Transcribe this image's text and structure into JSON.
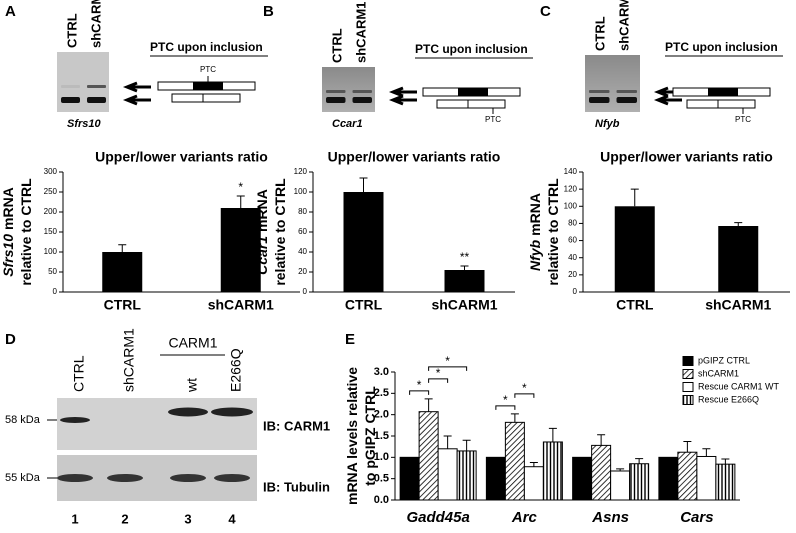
{
  "panel_letters": [
    "A",
    "B",
    "C",
    "D",
    "E"
  ],
  "gels": [
    {
      "lanes": [
        "CTRL",
        "shCARM1"
      ],
      "gene": "Sfrs10",
      "diagram_title": "PTC upon inclusion",
      "ptc": "PTC",
      "ptc_position": "above"
    },
    {
      "lanes": [
        "CTRL",
        "shCARM1"
      ],
      "gene": "Ccar1",
      "diagram_title": "PTC upon inclusion",
      "ptc": "PTC",
      "ptc_position": "below"
    },
    {
      "lanes": [
        "CTRL",
        "shCARM1"
      ],
      "gene": "Nfyb",
      "diagram_title": "PTC upon inclusion",
      "ptc": "PTC",
      "ptc_position": "below"
    }
  ],
  "blot": {
    "lanes": [
      "CTRL",
      "shCARM1",
      "wt",
      "E266Q"
    ],
    "group": "CARM1",
    "markers": [
      "58 kDa",
      "55 kDa"
    ],
    "antibodies": [
      "IB: CARM1",
      "IB: Tubulin"
    ],
    "lane_numbers": [
      "1",
      "2",
      "3",
      "4"
    ]
  },
  "chart_data": [
    {
      "type": "bar",
      "title": "Upper/lower variants ratio",
      "ylabel": [
        "Sfrs10",
        "mRNA",
        "relative to CTRL"
      ],
      "categories": [
        "CTRL",
        "shCARM1"
      ],
      "values": [
        100,
        210
      ],
      "errors": [
        18,
        30
      ],
      "color": "#000000",
      "ylim": [
        0,
        300
      ],
      "yticks": [
        0,
        50,
        100,
        150,
        200,
        250,
        300
      ],
      "annotations": [
        {
          "category": "shCARM1",
          "text": "*"
        }
      ]
    },
    {
      "type": "bar",
      "title": "Upper/lower variants ratio",
      "ylabel": [
        "Ccar1",
        "mRNA",
        "relative to CTRL"
      ],
      "categories": [
        "CTRL",
        "shCARM1"
      ],
      "values": [
        100,
        22
      ],
      "errors": [
        14,
        4
      ],
      "color": "#000000",
      "ylim": [
        0,
        120
      ],
      "yticks": [
        0,
        20,
        40,
        60,
        80,
        100,
        120
      ],
      "annotations": [
        {
          "category": "shCARM1",
          "text": "**"
        }
      ]
    },
    {
      "type": "bar",
      "title": "Upper/lower variants ratio",
      "ylabel": [
        "Nfyb",
        "mRNA",
        "relative to CTRL"
      ],
      "categories": [
        "CTRL",
        "shCARM1"
      ],
      "values": [
        100,
        77
      ],
      "errors": [
        20,
        4
      ],
      "color": "#000000",
      "ylim": [
        0,
        140
      ],
      "yticks": [
        0,
        20,
        40,
        60,
        80,
        100,
        120,
        140
      ],
      "annotations": []
    },
    {
      "type": "grouped-bar",
      "ylabel": [
        "mRNA levels relative",
        "to pGIPZ CTRL"
      ],
      "categories": [
        "Gadd45a",
        "Arc",
        "Asns",
        "Cars"
      ],
      "series": [
        {
          "name": "pGIPZ CTRL",
          "color": "#000000",
          "style": "solid",
          "values": [
            1.0,
            1.0,
            1.0,
            1.0
          ],
          "errors": [
            null,
            null,
            null,
            null
          ]
        },
        {
          "name": "shCARM1",
          "color": "#000000",
          "style": "diagonal",
          "values": [
            2.07,
            1.82,
            1.28,
            1.12
          ],
          "errors": [
            0.3,
            0.2,
            0.25,
            0.25
          ]
        },
        {
          "name": "Rescue CARM1 WT",
          "color": "#000000",
          "style": "empty",
          "values": [
            1.2,
            0.78,
            0.68,
            1.02
          ],
          "errors": [
            0.3,
            0.1,
            0.05,
            0.18
          ]
        },
        {
          "name": "Rescue E266Q",
          "color": "#000000",
          "style": "vertical",
          "values": [
            1.15,
            1.36,
            0.85,
            0.84
          ],
          "errors": [
            0.25,
            0.32,
            0.12,
            0.12
          ]
        }
      ],
      "ylim": [
        0,
        3
      ],
      "yticks": [
        {
          "value": 0,
          "label": "0.0"
        },
        {
          "value": 0.5,
          "label": "0.5"
        },
        {
          "value": 1,
          "label": "1.0"
        },
        {
          "value": 1.5,
          "label": "1.5"
        },
        {
          "value": 2,
          "label": "2.0"
        },
        {
          "value": 2.5,
          "label": "2.5"
        },
        {
          "value": 3,
          "label": "3.0"
        }
      ],
      "annotations": [
        {
          "category": "Gadd45a",
          "pair": [
            "pGIPZ CTRL",
            "shCARM1"
          ],
          "text": "*"
        },
        {
          "category": "Gadd45a",
          "pair": [
            "shCARM1",
            "Rescue CARM1 WT"
          ],
          "text": "*"
        },
        {
          "category": "Gadd45a",
          "pair": [
            "shCARM1",
            "Rescue E266Q"
          ],
          "text": "*"
        },
        {
          "category": "Arc",
          "pair": [
            "pGIPZ CTRL",
            "shCARM1"
          ],
          "text": "*"
        },
        {
          "category": "Arc",
          "pair": [
            "shCARM1",
            "Rescue CARM1 WT"
          ],
          "text": "*"
        }
      ]
    }
  ]
}
